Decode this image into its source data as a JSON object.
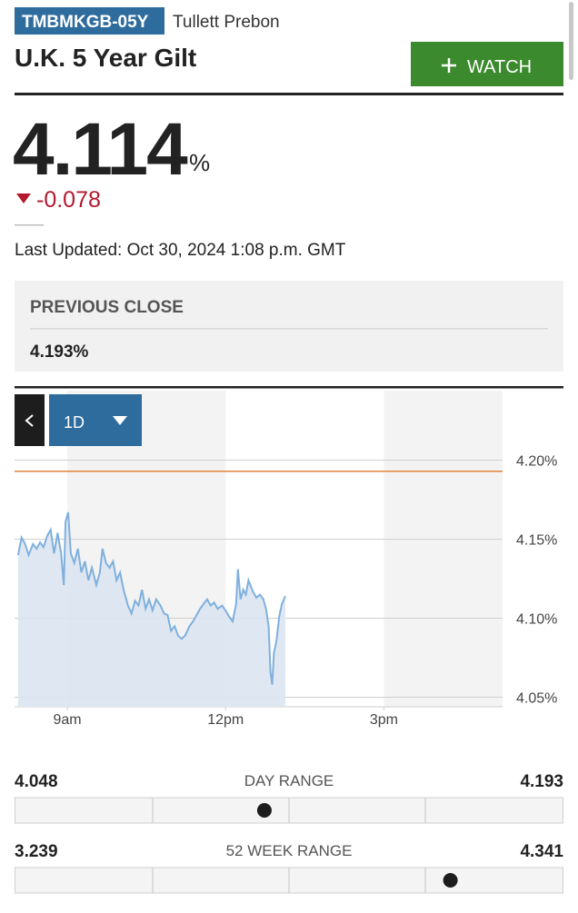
{
  "header": {
    "ticker": "TMBMKGB-05Y",
    "source": "Tullett Prebon",
    "name": "U.K. 5 Year Gilt",
    "watch": "WATCH"
  },
  "quote": {
    "price": 4.114,
    "unit": "%",
    "change": -0.078,
    "updated": "Last Updated: Oct 30, 2024 1:08 p.m. GMT"
  },
  "previous_close": {
    "label": "PREVIOUS CLOSE",
    "value": 4.193,
    "value_label": "4.193%"
  },
  "chart_data": {
    "type": "area",
    "range": "1D",
    "color": "#7fb0de",
    "x": [
      484,
      488,
      492,
      496,
      501,
      505,
      509,
      513,
      517,
      521,
      525,
      529,
      533,
      536,
      538,
      541,
      544,
      548,
      552,
      556,
      560,
      564,
      568,
      573,
      577,
      580,
      584,
      588,
      592,
      596,
      600,
      604,
      609,
      613,
      617,
      621,
      625,
      629,
      633,
      637,
      641,
      646,
      650,
      654,
      658,
      662,
      666,
      670,
      674,
      679,
      683,
      687,
      691,
      695,
      699,
      703,
      707,
      711,
      716,
      720,
      724,
      728,
      732,
      734,
      737,
      740,
      743,
      746,
      751,
      755,
      759,
      763,
      766,
      769,
      771,
      773,
      775,
      778,
      781,
      784,
      788
    ],
    "values": [
      4.14,
      4.151,
      4.147,
      4.14,
      4.147,
      4.144,
      4.148,
      4.145,
      4.152,
      4.156,
      4.141,
      4.154,
      4.141,
      4.121,
      4.161,
      4.167,
      4.141,
      4.135,
      4.144,
      4.129,
      4.136,
      4.124,
      4.132,
      4.121,
      4.129,
      4.144,
      4.135,
      4.132,
      4.136,
      4.124,
      4.129,
      4.118,
      4.108,
      4.103,
      4.111,
      4.108,
      4.118,
      4.106,
      4.112,
      4.105,
      4.112,
      4.108,
      4.103,
      4.102,
      4.092,
      4.095,
      4.089,
      4.087,
      4.089,
      4.095,
      4.098,
      4.102,
      4.106,
      4.109,
      4.112,
      4.108,
      4.11,
      4.106,
      4.108,
      4.105,
      4.101,
      4.098,
      4.109,
      4.131,
      4.112,
      4.118,
      4.115,
      4.124,
      4.117,
      4.113,
      4.115,
      4.112,
      4.106,
      4.095,
      4.066,
      4.058,
      4.078,
      4.086,
      4.101,
      4.109,
      4.114
    ],
    "xlim": [
      480,
      1035
    ],
    "xticks": [
      {
        "value": 540,
        "label": "9am"
      },
      {
        "value": 720,
        "label": "12pm"
      },
      {
        "value": 900,
        "label": "3pm"
      }
    ],
    "ylim": [
      4.044,
      4.244
    ],
    "yticks": [
      {
        "value": 4.05,
        "label": "4.05%"
      },
      {
        "value": 4.1,
        "label": "4.10%"
      },
      {
        "value": 4.15,
        "label": "4.15%"
      },
      {
        "value": 4.2,
        "label": "4.20%"
      }
    ],
    "grid": true
  },
  "ranges": [
    {
      "label": "DAY RANGE",
      "low": 4.048,
      "high": 4.193
    },
    {
      "label": "52 WEEK RANGE",
      "low": 3.239,
      "high": 4.341
    }
  ]
}
